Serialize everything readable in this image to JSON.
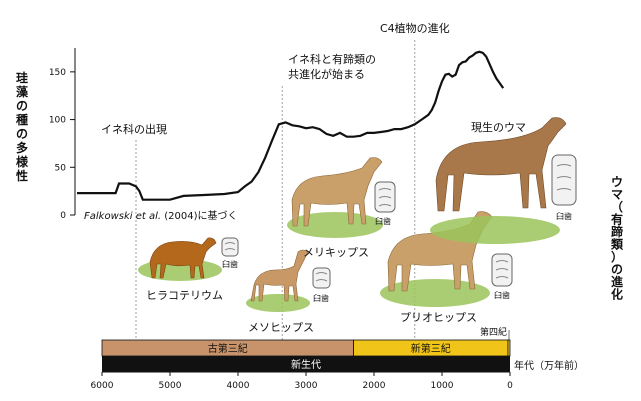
{
  "chart_data": {
    "type": "line",
    "ylabel": "珪藻の種の多様性",
    "right_label": "ウマ（有蹄類）の進化",
    "x_axis_label": "年代（万年前）",
    "x_ticks": [
      6000,
      5000,
      4000,
      3000,
      2000,
      1000,
      0
    ],
    "y_ticks": [
      0,
      50,
      100,
      150
    ],
    "xlim": [
      6000,
      0
    ],
    "ylim": [
      0,
      175
    ],
    "series": [
      {
        "x": [
          6000,
          5800,
          5750,
          5600,
          5500,
          5450,
          5400,
          5000,
          4800,
          4500,
          4200,
          4000,
          3900,
          3800,
          3700,
          3600,
          3500,
          3400,
          3300,
          3200,
          3100,
          3000,
          2900,
          2800,
          2700,
          2600,
          2500,
          2400,
          2300,
          2200,
          2100,
          2000,
          1900,
          1800,
          1700,
          1600,
          1500,
          1400,
          1300,
          1200,
          1150,
          1100,
          1050,
          1000,
          950,
          900,
          850,
          800,
          750,
          700,
          650,
          600,
          550,
          500,
          450,
          400,
          350,
          300,
          250,
          200,
          150,
          100
        ],
        "y": [
          23,
          23,
          33,
          33,
          30,
          25,
          16,
          16,
          20,
          21,
          22,
          24,
          30,
          35,
          45,
          60,
          78,
          95,
          97,
          94,
          93,
          91,
          92,
          90,
          85,
          83,
          86,
          82,
          82,
          83,
          86,
          86,
          87,
          88,
          90,
          90,
          92,
          95,
          100,
          105,
          110,
          118,
          130,
          140,
          147,
          148,
          145,
          147,
          157,
          160,
          161,
          165,
          167,
          170,
          171,
          170,
          166,
          158,
          150,
          143,
          138,
          133
        ]
      }
    ],
    "annotations": [
      {
        "text": "イネ科の出現",
        "x": 5500
      },
      {
        "text": "イネ科と有蹄類の共進化が始まる",
        "x": 3350
      },
      {
        "text": "C4植物の進化",
        "x": 1400
      },
      {
        "text": "Falkowski et al. (2004)に基づく"
      }
    ],
    "periods": [
      {
        "name": "古第三紀",
        "from": 6000,
        "to": 2300,
        "color": "#c8936a"
      },
      {
        "name": "新第三紀",
        "from": 2300,
        "to": 30,
        "color": "#f0c419"
      },
      {
        "name": "第四紀",
        "from": 30,
        "to": 0,
        "color": "#f0c419"
      }
    ],
    "era": {
      "name": "新生代",
      "from": 6000,
      "to": 0,
      "color": "#111111"
    }
  },
  "horses": [
    {
      "name": "ヒラコテリウム",
      "tooth": "臼歯"
    },
    {
      "name": "メソヒップス",
      "tooth": "臼歯"
    },
    {
      "name": "メリキップス",
      "tooth": "臼歯"
    },
    {
      "name": "プリオヒップス",
      "tooth": "臼歯"
    },
    {
      "name": "現生のウマ",
      "tooth": "臼歯"
    }
  ],
  "credit": {
    "author": "Falkowski",
    "etal": "et al.",
    "rest": " (2004)に基づく"
  }
}
